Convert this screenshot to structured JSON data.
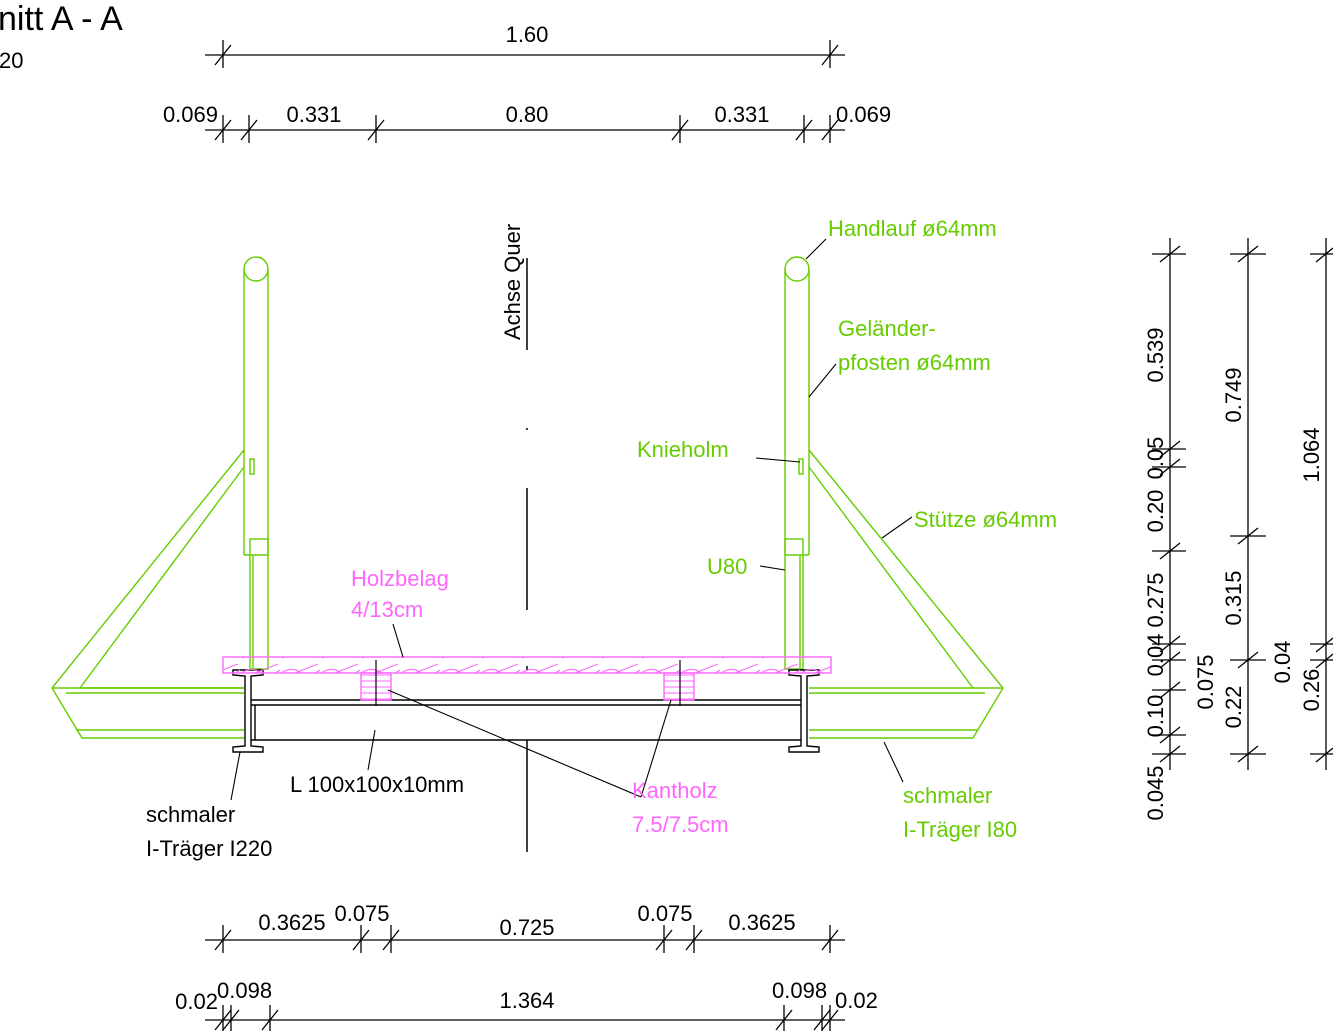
{
  "title": "nitt A - A",
  "scale_fragment": "20",
  "colors": {
    "steel": "#66cc00",
    "wood": "#ff66ff",
    "lines": "#000000",
    "background": "#ffffff"
  },
  "axis_label": "Achse Quer",
  "top_dims": {
    "overall": "1.60",
    "segments": [
      "0.069",
      "0.331",
      "0.80",
      "0.331",
      "0.069"
    ]
  },
  "bottom_dims": {
    "row1": [
      "0.3625",
      "0.075",
      "0.725",
      "0.075",
      "0.3625"
    ],
    "row2": [
      "0.02",
      "0.098",
      "1.364",
      "0.098",
      "0.02"
    ]
  },
  "right_dims": {
    "chain1": [
      "0.539",
      "0.05",
      "0.20",
      "0.275",
      "0.04",
      "0.10",
      "0.045"
    ],
    "chain2": [
      "0.749",
      "0.315",
      "0.075",
      "0.22"
    ],
    "chain3": [
      "1.064",
      "0.04",
      "0.26"
    ]
  },
  "labels": {
    "handlauf": "Handlauf ø64mm",
    "pfosten_1": "Geländer-",
    "pfosten_2": "pfosten ø64mm",
    "knieholm": "Knieholm",
    "stuetze": "Stütze ø64mm",
    "u80": "U80",
    "holzbelag_1": "Holzbelag",
    "holzbelag_2": "4/13cm",
    "angle": "L 100x100x10mm",
    "kantholz_1": "Kantholz",
    "kantholz_2": "7.5/7.5cm",
    "i220_1": "schmaler",
    "i220_2": "I-Träger I220",
    "i80_1": "schmaler",
    "i80_2": "I-Träger I80"
  }
}
